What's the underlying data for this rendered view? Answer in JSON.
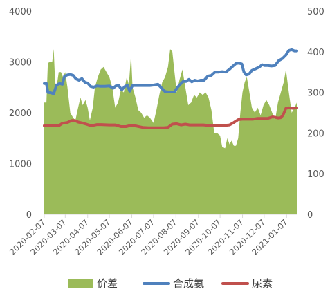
{
  "chart_data": {
    "type": "line",
    "title": "",
    "xlabel": "",
    "ylabel_left": "",
    "ylabel_right": "",
    "ylim_left": [
      0,
      4000
    ],
    "ylim_right": [
      0,
      500
    ],
    "yticks_left": [
      "0",
      "1000",
      "2000",
      "3000",
      "4000"
    ],
    "yticks_right": [
      "0",
      "100",
      "200",
      "300",
      "400",
      "500"
    ],
    "x_dates": [
      "2020-02-07",
      "2020-03-07",
      "2020-04-07",
      "2020-05-07",
      "2020-06-07",
      "2020-07-07",
      "2020-08-07",
      "2020-09-07",
      "2020-10-07",
      "2020-11-07",
      "2020-12-07",
      "2021-01-07"
    ],
    "grid": false,
    "legend_position": "bottom",
    "colors": {
      "price_diff": "#9bbb59",
      "synthetic_ammonia": "#4f81bd",
      "urea": "#c0504d",
      "axis": "#d9d9d9"
    },
    "series": [
      {
        "name": "价差",
        "type": "area",
        "axis": "left",
        "color": "#9bbb59",
        "points": [
          [
            "2020-02-07",
            2200
          ],
          [
            "2020-02-10",
            2200
          ],
          [
            "2020-02-12",
            2980
          ],
          [
            "2020-02-15",
            3000
          ],
          [
            "2020-02-18",
            3000
          ],
          [
            "2020-02-20",
            3250
          ],
          [
            "2020-02-22",
            2600
          ],
          [
            "2020-02-24",
            2500
          ],
          [
            "2020-02-27",
            2800
          ],
          [
            "2020-03-01",
            2800
          ],
          [
            "2020-03-04",
            2700
          ],
          [
            "2020-03-07",
            2800
          ],
          [
            "2020-03-10",
            2500
          ],
          [
            "2020-03-14",
            2000
          ],
          [
            "2020-03-18",
            1900
          ],
          [
            "2020-03-21",
            1850
          ],
          [
            "2020-03-24",
            2050
          ],
          [
            "2020-03-28",
            2300
          ],
          [
            "2020-03-31",
            2150
          ],
          [
            "2020-04-04",
            2250
          ],
          [
            "2020-04-07",
            2100
          ],
          [
            "2020-04-10",
            1850
          ],
          [
            "2020-04-14",
            2100
          ],
          [
            "2020-04-17",
            2500
          ],
          [
            "2020-04-21",
            2700
          ],
          [
            "2020-04-25",
            2850
          ],
          [
            "2020-04-29",
            2900
          ],
          [
            "2020-05-03",
            2800
          ],
          [
            "2020-05-07",
            2700
          ],
          [
            "2020-05-11",
            2500
          ],
          [
            "2020-05-15",
            2100
          ],
          [
            "2020-05-19",
            2200
          ],
          [
            "2020-05-23",
            2450
          ],
          [
            "2020-05-27",
            2400
          ],
          [
            "2020-05-31",
            2700
          ],
          [
            "2020-06-03",
            2550
          ],
          [
            "2020-06-06",
            3150
          ],
          [
            "2020-06-08",
            2500
          ],
          [
            "2020-06-12",
            2300
          ],
          [
            "2020-06-16",
            2050
          ],
          [
            "2020-06-20",
            2000
          ],
          [
            "2020-06-24",
            1900
          ],
          [
            "2020-06-28",
            1950
          ],
          [
            "2020-07-02",
            1900
          ],
          [
            "2020-07-07",
            1800
          ],
          [
            "2020-07-11",
            2050
          ],
          [
            "2020-07-15",
            2350
          ],
          [
            "2020-07-19",
            2600
          ],
          [
            "2020-07-23",
            2700
          ],
          [
            "2020-07-27",
            2900
          ],
          [
            "2020-07-30",
            3250
          ],
          [
            "2020-08-02",
            3200
          ],
          [
            "2020-08-05",
            2800
          ],
          [
            "2020-08-08",
            2400
          ],
          [
            "2020-08-12",
            2650
          ],
          [
            "2020-08-16",
            2850
          ],
          [
            "2020-08-20",
            2500
          ],
          [
            "2020-08-24",
            2150
          ],
          [
            "2020-08-28",
            2200
          ],
          [
            "2020-09-01",
            2350
          ],
          [
            "2020-09-05",
            2300
          ],
          [
            "2020-09-09",
            2400
          ],
          [
            "2020-09-13",
            2350
          ],
          [
            "2020-09-17",
            2400
          ],
          [
            "2020-09-21",
            2300
          ],
          [
            "2020-09-25",
            2050
          ],
          [
            "2020-09-29",
            1600
          ],
          [
            "2020-10-03",
            1600
          ],
          [
            "2020-10-07",
            1550
          ],
          [
            "2020-10-10",
            1330
          ],
          [
            "2020-10-14",
            1300
          ],
          [
            "2020-10-17",
            1500
          ],
          [
            "2020-10-20",
            1380
          ],
          [
            "2020-10-23",
            1450
          ],
          [
            "2020-10-26",
            1350
          ],
          [
            "2020-10-29",
            1350
          ],
          [
            "2020-11-01",
            1500
          ],
          [
            "2020-11-04",
            2000
          ],
          [
            "2020-11-07",
            2400
          ],
          [
            "2020-11-10",
            2600
          ],
          [
            "2020-11-13",
            2700
          ],
          [
            "2020-11-16",
            2450
          ],
          [
            "2020-11-20",
            2100
          ],
          [
            "2020-11-24",
            2000
          ],
          [
            "2020-11-28",
            2100
          ],
          [
            "2020-12-02",
            1950
          ],
          [
            "2020-12-06",
            2150
          ],
          [
            "2020-12-10",
            2250
          ],
          [
            "2020-12-14",
            2150
          ],
          [
            "2020-12-18",
            2000
          ],
          [
            "2020-12-22",
            1850
          ],
          [
            "2020-12-26",
            2200
          ],
          [
            "2020-12-30",
            2400
          ],
          [
            "2021-01-03",
            2600
          ],
          [
            "2021-01-06",
            2850
          ],
          [
            "2021-01-10",
            2400
          ],
          [
            "2021-01-14",
            2000
          ],
          [
            "2021-01-18",
            2100
          ],
          [
            "2021-01-21",
            2200
          ]
        ]
      },
      {
        "name": "合成氨",
        "type": "line",
        "axis": "right",
        "color": "#4f81bd",
        "points": [
          [
            "2020-02-07",
            322
          ],
          [
            "2020-02-10",
            322
          ],
          [
            "2020-02-12",
            300
          ],
          [
            "2020-02-16",
            299
          ],
          [
            "2020-02-20",
            297
          ],
          [
            "2020-02-24",
            318
          ],
          [
            "2020-02-28",
            322
          ],
          [
            "2020-03-03",
            320
          ],
          [
            "2020-03-06",
            340
          ],
          [
            "2020-03-10",
            343
          ],
          [
            "2020-03-14",
            344
          ],
          [
            "2020-03-18",
            342
          ],
          [
            "2020-03-22",
            333
          ],
          [
            "2020-03-26",
            330
          ],
          [
            "2020-03-30",
            334
          ],
          [
            "2020-04-03",
            325
          ],
          [
            "2020-04-07",
            323
          ],
          [
            "2020-04-11",
            315
          ],
          [
            "2020-04-15",
            313
          ],
          [
            "2020-04-20",
            316
          ],
          [
            "2020-04-25",
            315
          ],
          [
            "2020-05-01",
            315
          ],
          [
            "2020-05-07",
            316
          ],
          [
            "2020-05-12",
            310
          ],
          [
            "2020-05-16",
            316
          ],
          [
            "2020-05-20",
            317
          ],
          [
            "2020-05-24",
            306
          ],
          [
            "2020-05-28",
            314
          ],
          [
            "2020-06-01",
            318
          ],
          [
            "2020-06-04",
            303
          ],
          [
            "2020-06-08",
            317
          ],
          [
            "2020-06-14",
            317
          ],
          [
            "2020-06-20",
            317
          ],
          [
            "2020-06-26",
            317
          ],
          [
            "2020-07-02",
            317
          ],
          [
            "2020-07-07",
            318
          ],
          [
            "2020-07-13",
            320
          ],
          [
            "2020-07-19",
            309
          ],
          [
            "2020-07-23",
            302
          ],
          [
            "2020-07-27",
            301
          ],
          [
            "2020-08-01",
            301
          ],
          [
            "2020-08-05",
            301
          ],
          [
            "2020-08-09",
            312
          ],
          [
            "2020-08-13",
            320
          ],
          [
            "2020-08-17",
            327
          ],
          [
            "2020-08-21",
            327
          ],
          [
            "2020-08-25",
            332
          ],
          [
            "2020-08-29",
            326
          ],
          [
            "2020-09-02",
            330
          ],
          [
            "2020-09-06",
            328
          ],
          [
            "2020-09-10",
            330
          ],
          [
            "2020-09-15",
            330
          ],
          [
            "2020-09-20",
            340
          ],
          [
            "2020-09-25",
            342
          ],
          [
            "2020-09-30",
            350
          ],
          [
            "2020-10-05",
            350
          ],
          [
            "2020-10-10",
            351
          ],
          [
            "2020-10-15",
            350
          ],
          [
            "2020-10-20",
            357
          ],
          [
            "2020-10-25",
            365
          ],
          [
            "2020-10-29",
            371
          ],
          [
            "2020-11-02",
            372
          ],
          [
            "2020-11-06",
            370
          ],
          [
            "2020-11-09",
            350
          ],
          [
            "2020-11-12",
            343
          ],
          [
            "2020-11-16",
            345
          ],
          [
            "2020-11-20",
            354
          ],
          [
            "2020-11-25",
            358
          ],
          [
            "2020-11-30",
            362
          ],
          [
            "2020-12-04",
            368
          ],
          [
            "2020-12-08",
            366
          ],
          [
            "2020-12-12",
            366
          ],
          [
            "2020-12-17",
            365
          ],
          [
            "2020-12-22",
            366
          ],
          [
            "2020-12-27",
            378
          ],
          [
            "2021-01-01",
            383
          ],
          [
            "2021-01-06",
            392
          ],
          [
            "2021-01-10",
            403
          ],
          [
            "2021-01-14",
            405
          ],
          [
            "2021-01-18",
            402
          ],
          [
            "2021-01-21",
            402
          ]
        ]
      },
      {
        "name": "尿素",
        "type": "line",
        "axis": "right",
        "color": "#c0504d",
        "points": [
          [
            "2020-02-07",
            218
          ],
          [
            "2020-02-17",
            218
          ],
          [
            "2020-02-27",
            218
          ],
          [
            "2020-03-03",
            224
          ],
          [
            "2020-03-10",
            226
          ],
          [
            "2020-03-16",
            231
          ],
          [
            "2020-03-20",
            231
          ],
          [
            "2020-03-25",
            227
          ],
          [
            "2020-03-30",
            225
          ],
          [
            "2020-04-05",
            222
          ],
          [
            "2020-04-12",
            218
          ],
          [
            "2020-04-20",
            221
          ],
          [
            "2020-04-26",
            221
          ],
          [
            "2020-05-07",
            220
          ],
          [
            "2020-05-15",
            220
          ],
          [
            "2020-05-23",
            216
          ],
          [
            "2020-05-30",
            216
          ],
          [
            "2020-06-06",
            219
          ],
          [
            "2020-06-14",
            217
          ],
          [
            "2020-06-22",
            214
          ],
          [
            "2020-06-30",
            213
          ],
          [
            "2020-07-07",
            213
          ],
          [
            "2020-07-14",
            213
          ],
          [
            "2020-07-21",
            213
          ],
          [
            "2020-07-27",
            214
          ],
          [
            "2020-08-02",
            222
          ],
          [
            "2020-08-08",
            223
          ],
          [
            "2020-08-14",
            220
          ],
          [
            "2020-08-20",
            222
          ],
          [
            "2020-08-26",
            220
          ],
          [
            "2020-09-02",
            220
          ],
          [
            "2020-09-08",
            220
          ],
          [
            "2020-09-14",
            220
          ],
          [
            "2020-09-20",
            219
          ],
          [
            "2020-09-26",
            219
          ],
          [
            "2020-10-02",
            219
          ],
          [
            "2020-10-08",
            219
          ],
          [
            "2020-10-14",
            219
          ],
          [
            "2020-10-20",
            220
          ],
          [
            "2020-10-26",
            226
          ],
          [
            "2020-11-01",
            233
          ],
          [
            "2020-11-07",
            234
          ],
          [
            "2020-11-14",
            234
          ],
          [
            "2020-11-21",
            234
          ],
          [
            "2020-11-28",
            236
          ],
          [
            "2020-12-05",
            236
          ],
          [
            "2020-12-12",
            236
          ],
          [
            "2020-12-19",
            240
          ],
          [
            "2020-12-26",
            237
          ],
          [
            "2020-12-30",
            238
          ],
          [
            "2021-01-02",
            244
          ],
          [
            "2021-01-06",
            261
          ],
          [
            "2021-01-10",
            262
          ],
          [
            "2021-01-15",
            261
          ],
          [
            "2021-01-21",
            262
          ]
        ]
      }
    ]
  }
}
